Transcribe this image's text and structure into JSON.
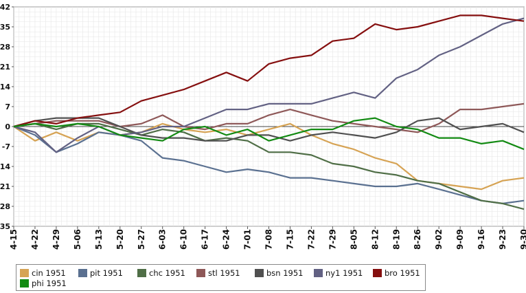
{
  "chart_data": {
    "type": "line",
    "title": "",
    "xlabel": "",
    "ylabel": "",
    "ylim": [
      -35,
      42
    ],
    "yticks": [
      42,
      35,
      28,
      21,
      14,
      7,
      0,
      -7,
      -14,
      -21,
      -28,
      -35
    ],
    "x_start": "4-15",
    "x_end": "9-30",
    "xticks": [
      "4-15",
      "4-22",
      "4-29",
      "5-06",
      "5-13",
      "5-20",
      "5-27",
      "6-03",
      "6-10",
      "6-17",
      "6-24",
      "7-01",
      "7-08",
      "7-15",
      "7-22",
      "7-29",
      "8-05",
      "8-12",
      "8-19",
      "8-26",
      "9-02",
      "9-09",
      "9-16",
      "9-23",
      "9-30"
    ],
    "grid": true,
    "legend_position": "bottom",
    "series": [
      {
        "name": "cin 1951",
        "color": "#d6a354",
        "points": [
          [
            "4-15",
            0
          ],
          [
            "4-22",
            -5
          ],
          [
            "4-29",
            -2
          ],
          [
            "5-06",
            -5
          ],
          [
            "5-13",
            -2
          ],
          [
            "5-20",
            -3
          ],
          [
            "5-27",
            -2
          ],
          [
            "6-03",
            1
          ],
          [
            "6-10",
            -1
          ],
          [
            "6-17",
            -2
          ],
          [
            "6-24",
            -1
          ],
          [
            "7-01",
            -3
          ],
          [
            "7-08",
            -1
          ],
          [
            "7-15",
            1
          ],
          [
            "7-22",
            -3
          ],
          [
            "7-29",
            -6
          ],
          [
            "8-05",
            -8
          ],
          [
            "8-12",
            -11
          ],
          [
            "8-19",
            -13
          ],
          [
            "8-26",
            -19
          ],
          [
            "9-02",
            -20
          ],
          [
            "9-09",
            -21
          ],
          [
            "9-16",
            -22
          ],
          [
            "9-23",
            -19
          ],
          [
            "9-30",
            -18
          ]
        ]
      },
      {
        "name": "pit 1951",
        "color": "#5a7090",
        "points": [
          [
            "4-15",
            0
          ],
          [
            "4-22",
            -3
          ],
          [
            "4-29",
            -9
          ],
          [
            "5-06",
            -6
          ],
          [
            "5-13",
            -2
          ],
          [
            "5-20",
            -3
          ],
          [
            "5-27",
            -5
          ],
          [
            "6-03",
            -11
          ],
          [
            "6-10",
            -12
          ],
          [
            "6-17",
            -14
          ],
          [
            "6-24",
            -16
          ],
          [
            "7-01",
            -15
          ],
          [
            "7-08",
            -16
          ],
          [
            "7-15",
            -18
          ],
          [
            "7-22",
            -18
          ],
          [
            "7-29",
            -19
          ],
          [
            "8-05",
            -20
          ],
          [
            "8-12",
            -21
          ],
          [
            "8-19",
            -21
          ],
          [
            "8-26",
            -20
          ],
          [
            "9-02",
            -22
          ],
          [
            "9-09",
            -24
          ],
          [
            "9-16",
            -26
          ],
          [
            "9-23",
            -27
          ],
          [
            "9-30",
            -26
          ]
        ]
      },
      {
        "name": "chc 1951",
        "color": "#4f6e46",
        "points": [
          [
            "4-15",
            0
          ],
          [
            "4-22",
            1
          ],
          [
            "4-29",
            -1
          ],
          [
            "5-06",
            1
          ],
          [
            "5-13",
            1
          ],
          [
            "5-20",
            -1
          ],
          [
            "5-27",
            -3
          ],
          [
            "6-03",
            -1
          ],
          [
            "6-10",
            -2
          ],
          [
            "6-17",
            -5
          ],
          [
            "6-24",
            -4
          ],
          [
            "7-01",
            -5
          ],
          [
            "7-08",
            -9
          ],
          [
            "7-15",
            -9
          ],
          [
            "7-22",
            -10
          ],
          [
            "7-29",
            -13
          ],
          [
            "8-05",
            -14
          ],
          [
            "8-12",
            -16
          ],
          [
            "8-19",
            -17
          ],
          [
            "8-26",
            -19
          ],
          [
            "9-02",
            -20
          ],
          [
            "9-09",
            -23
          ],
          [
            "9-16",
            -26
          ],
          [
            "9-23",
            -27
          ],
          [
            "9-30",
            -29
          ]
        ]
      },
      {
        "name": "stl 1951",
        "color": "#8e5858",
        "points": [
          [
            "4-15",
            0
          ],
          [
            "4-22",
            1
          ],
          [
            "4-29",
            2
          ],
          [
            "5-06",
            2
          ],
          [
            "5-13",
            2
          ],
          [
            "5-20",
            0
          ],
          [
            "5-27",
            1
          ],
          [
            "6-03",
            4
          ],
          [
            "6-10",
            0
          ],
          [
            "6-17",
            -1
          ],
          [
            "6-24",
            1
          ],
          [
            "7-01",
            1
          ],
          [
            "7-08",
            4
          ],
          [
            "7-15",
            6
          ],
          [
            "7-22",
            4
          ],
          [
            "7-29",
            2
          ],
          [
            "8-05",
            1
          ],
          [
            "8-12",
            0
          ],
          [
            "8-19",
            -1
          ],
          [
            "8-26",
            -2
          ],
          [
            "9-02",
            1
          ],
          [
            "9-09",
            6
          ],
          [
            "9-16",
            6
          ],
          [
            "9-23",
            7
          ],
          [
            "9-30",
            8
          ]
        ]
      },
      {
        "name": "bsn 1951",
        "color": "#505050",
        "points": [
          [
            "4-15",
            0
          ],
          [
            "4-22",
            2
          ],
          [
            "4-29",
            3
          ],
          [
            "5-06",
            3
          ],
          [
            "5-13",
            3
          ],
          [
            "5-20",
            0
          ],
          [
            "5-27",
            -3
          ],
          [
            "6-03",
            -4
          ],
          [
            "6-10",
            -4
          ],
          [
            "6-17",
            -5
          ],
          [
            "6-24",
            -5
          ],
          [
            "7-01",
            -3
          ],
          [
            "7-08",
            -3
          ],
          [
            "7-15",
            -5
          ],
          [
            "7-22",
            -3
          ],
          [
            "7-29",
            -2
          ],
          [
            "8-05",
            -3
          ],
          [
            "8-12",
            -4
          ],
          [
            "8-19",
            -2
          ],
          [
            "8-26",
            2
          ],
          [
            "9-02",
            3
          ],
          [
            "9-09",
            -1
          ],
          [
            "9-16",
            0
          ],
          [
            "9-23",
            1
          ],
          [
            "9-30",
            -2
          ]
        ]
      },
      {
        "name": "ny1 1951",
        "color": "#626183",
        "points": [
          [
            "4-15",
            0
          ],
          [
            "4-22",
            -2
          ],
          [
            "4-29",
            -9
          ],
          [
            "5-06",
            -4
          ],
          [
            "5-13",
            0
          ],
          [
            "5-20",
            -3
          ],
          [
            "5-27",
            -2
          ],
          [
            "6-03",
            0
          ],
          [
            "6-10",
            0
          ],
          [
            "6-17",
            3
          ],
          [
            "6-24",
            6
          ],
          [
            "7-01",
            6
          ],
          [
            "7-08",
            8
          ],
          [
            "7-15",
            8
          ],
          [
            "7-22",
            8
          ],
          [
            "7-29",
            10
          ],
          [
            "8-05",
            12
          ],
          [
            "8-12",
            10
          ],
          [
            "8-19",
            17
          ],
          [
            "8-26",
            20
          ],
          [
            "9-02",
            25
          ],
          [
            "9-09",
            28
          ],
          [
            "9-16",
            32
          ],
          [
            "9-23",
            36
          ],
          [
            "9-30",
            38
          ]
        ]
      },
      {
        "name": "bro 1951",
        "color": "#850f0f",
        "points": [
          [
            "4-15",
            0
          ],
          [
            "4-22",
            2
          ],
          [
            "4-29",
            1
          ],
          [
            "5-06",
            3
          ],
          [
            "5-13",
            4
          ],
          [
            "5-20",
            5
          ],
          [
            "5-27",
            9
          ],
          [
            "6-03",
            11
          ],
          [
            "6-10",
            13
          ],
          [
            "6-17",
            16
          ],
          [
            "6-24",
            19
          ],
          [
            "7-01",
            16
          ],
          [
            "7-08",
            22
          ],
          [
            "7-15",
            24
          ],
          [
            "7-22",
            25
          ],
          [
            "7-29",
            30
          ],
          [
            "8-05",
            31
          ],
          [
            "8-12",
            36
          ],
          [
            "8-19",
            34
          ],
          [
            "8-26",
            35
          ],
          [
            "9-02",
            37
          ],
          [
            "9-09",
            39
          ],
          [
            "9-16",
            39
          ],
          [
            "9-23",
            38
          ],
          [
            "9-30",
            37
          ]
        ]
      },
      {
        "name": "phi 1951",
        "color": "#128a12",
        "points": [
          [
            "4-15",
            0
          ],
          [
            "4-22",
            1
          ],
          [
            "4-29",
            0
          ],
          [
            "5-06",
            1
          ],
          [
            "5-13",
            0
          ],
          [
            "5-20",
            -3
          ],
          [
            "5-27",
            -4
          ],
          [
            "6-03",
            -5
          ],
          [
            "6-10",
            -1
          ],
          [
            "6-17",
            0
          ],
          [
            "6-24",
            -3
          ],
          [
            "7-01",
            -1
          ],
          [
            "7-08",
            -5
          ],
          [
            "7-15",
            -3
          ],
          [
            "7-22",
            -1
          ],
          [
            "7-29",
            -1
          ],
          [
            "8-05",
            2
          ],
          [
            "8-12",
            3
          ],
          [
            "8-19",
            0
          ],
          [
            "8-26",
            -1
          ],
          [
            "9-02",
            -4
          ],
          [
            "9-09",
            -4
          ],
          [
            "9-16",
            -6
          ],
          [
            "9-23",
            -5
          ],
          [
            "9-30",
            -8
          ]
        ]
      }
    ]
  }
}
